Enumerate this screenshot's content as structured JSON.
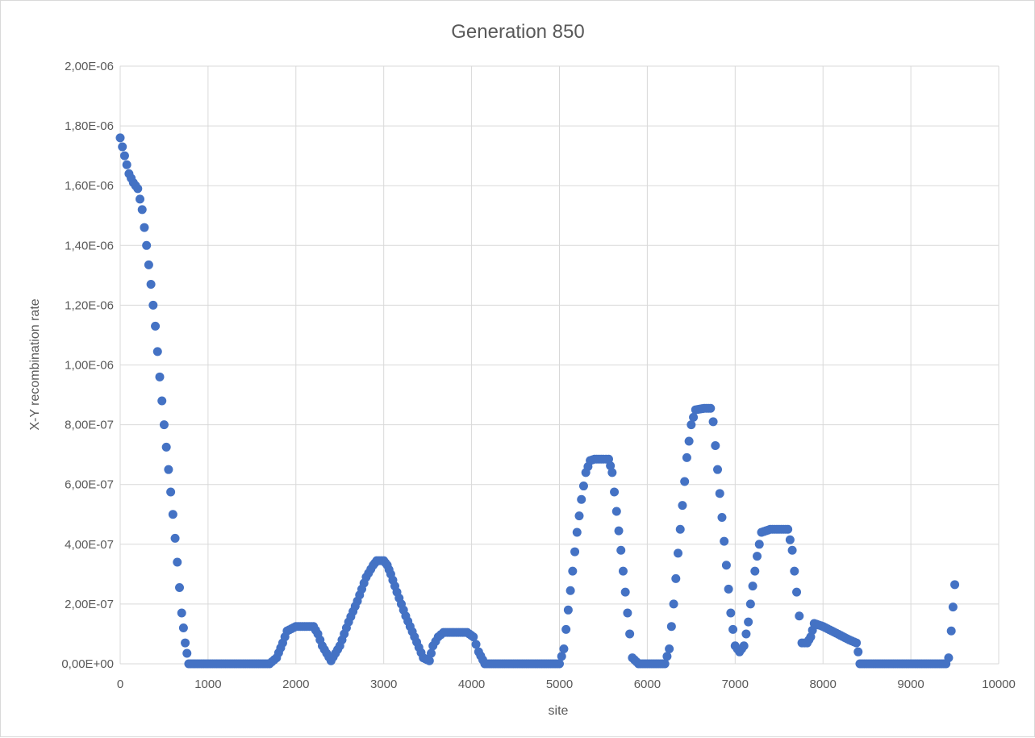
{
  "chart_data": {
    "type": "scatter",
    "title": "Generation 850",
    "xlabel": "site",
    "ylabel": "X-Y recombination rate",
    "xlim": [
      0,
      10000
    ],
    "ylim": [
      0,
      2e-06
    ],
    "x_ticks": [
      0,
      1000,
      2000,
      3000,
      4000,
      5000,
      6000,
      7000,
      8000,
      9000,
      10000
    ],
    "x_tick_labels": [
      "0",
      "1000",
      "2000",
      "3000",
      "4000",
      "5000",
      "6000",
      "7000",
      "8000",
      "9000",
      "10000"
    ],
    "y_ticks": [
      0,
      2e-07,
      4e-07,
      6e-07,
      8e-07,
      1e-06,
      1.2e-06,
      1.4e-06,
      1.6e-06,
      1.8e-06,
      2e-06
    ],
    "y_tick_labels": [
      "0,00E+00",
      "2,00E-07",
      "4,00E-07",
      "6,00E-07",
      "8,00E-07",
      "1,00E-06",
      "1,20E-06",
      "1,40E-06",
      "1,60E-06",
      "1,80E-06",
      "2,00E-06"
    ],
    "grid": true,
    "legend": "none",
    "marker_color": "#4472c4",
    "series": [
      {
        "x": [
          0,
          50,
          100,
          150,
          200,
          250,
          300,
          350,
          400,
          450,
          500,
          550,
          600,
          650,
          700,
          740,
          780,
          900,
          1100,
          1300,
          1500,
          1700,
          1780,
          1850,
          1900,
          2000,
          2100,
          2200,
          2250,
          2300,
          2400,
          2500,
          2600,
          2700,
          2800,
          2880,
          2920,
          3000,
          3040,
          3080,
          3150,
          3250,
          3350,
          3450,
          3520,
          3560,
          3620,
          3680,
          3800,
          3950,
          4020,
          4080,
          4150,
          4200,
          4400,
          4600,
          4800,
          5000,
          5050,
          5100,
          5150,
          5200,
          5250,
          5300,
          5350,
          5400,
          5500,
          5560,
          5600,
          5650,
          5700,
          5750,
          5800,
          5830,
          5900,
          6000,
          6100,
          6200,
          6250,
          6300,
          6350,
          6400,
          6450,
          6500,
          6550,
          6650,
          6720,
          6750,
          6800,
          6850,
          6900,
          6950,
          7000,
          7050,
          7100,
          7150,
          7200,
          7250,
          7300,
          7400,
          7500,
          7600,
          7650,
          7700,
          7730,
          7760,
          7820,
          7860,
          7900,
          8000,
          8100,
          8200,
          8300,
          8380,
          8400,
          8420,
          8600,
          8800,
          9000,
          9200,
          9400,
          9430,
          9460,
          9480,
          9500
        ],
        "y": [
          1.76e-06,
          1.7e-06,
          1.64e-06,
          1.61e-06,
          1.59e-06,
          1.52e-06,
          1.4e-06,
          1.27e-06,
          1.13e-06,
          9.6e-07,
          8e-07,
          6.5e-07,
          5e-07,
          3.4e-07,
          1.7e-07,
          7e-08,
          0,
          0,
          0,
          0,
          0,
          0,
          2e-08,
          7e-08,
          1.1e-07,
          1.25e-07,
          1.25e-07,
          1.25e-07,
          1e-07,
          6e-08,
          1e-08,
          6e-08,
          1.4e-07,
          2.1e-07,
          2.9e-07,
          3.3e-07,
          3.45e-07,
          3.45e-07,
          3.3e-07,
          3e-07,
          2.4e-07,
          1.6e-07,
          9e-08,
          2e-08,
          1e-08,
          6e-08,
          9e-08,
          1.05e-07,
          1.05e-07,
          1.05e-07,
          9e-08,
          4e-08,
          0,
          0,
          0,
          0,
          0,
          0,
          5e-08,
          1.8e-07,
          3.1e-07,
          4.4e-07,
          5.5e-07,
          6.4e-07,
          6.8e-07,
          6.85e-07,
          6.85e-07,
          6.85e-07,
          6.4e-07,
          5.1e-07,
          3.8e-07,
          2.4e-07,
          1e-07,
          2e-08,
          0,
          0,
          0,
          0,
          5e-08,
          2e-07,
          3.7e-07,
          5.3e-07,
          6.9e-07,
          8e-07,
          8.5e-07,
          8.55e-07,
          8.55e-07,
          8.1e-07,
          6.5e-07,
          4.9e-07,
          3.3e-07,
          1.7e-07,
          6e-08,
          4e-08,
          6e-08,
          1.4e-07,
          2.6e-07,
          3.6e-07,
          4.4e-07,
          4.5e-07,
          4.5e-07,
          4.5e-07,
          3.8e-07,
          2.4e-07,
          1.6e-07,
          7e-08,
          7e-08,
          9e-08,
          1.35e-07,
          1.25e-07,
          1.1e-07,
          9.5e-08,
          8e-08,
          7e-08,
          4e-08,
          0,
          0,
          0,
          0,
          0,
          0,
          2e-08,
          1.1e-07,
          1.9e-07,
          2.65e-07
        ]
      }
    ]
  }
}
